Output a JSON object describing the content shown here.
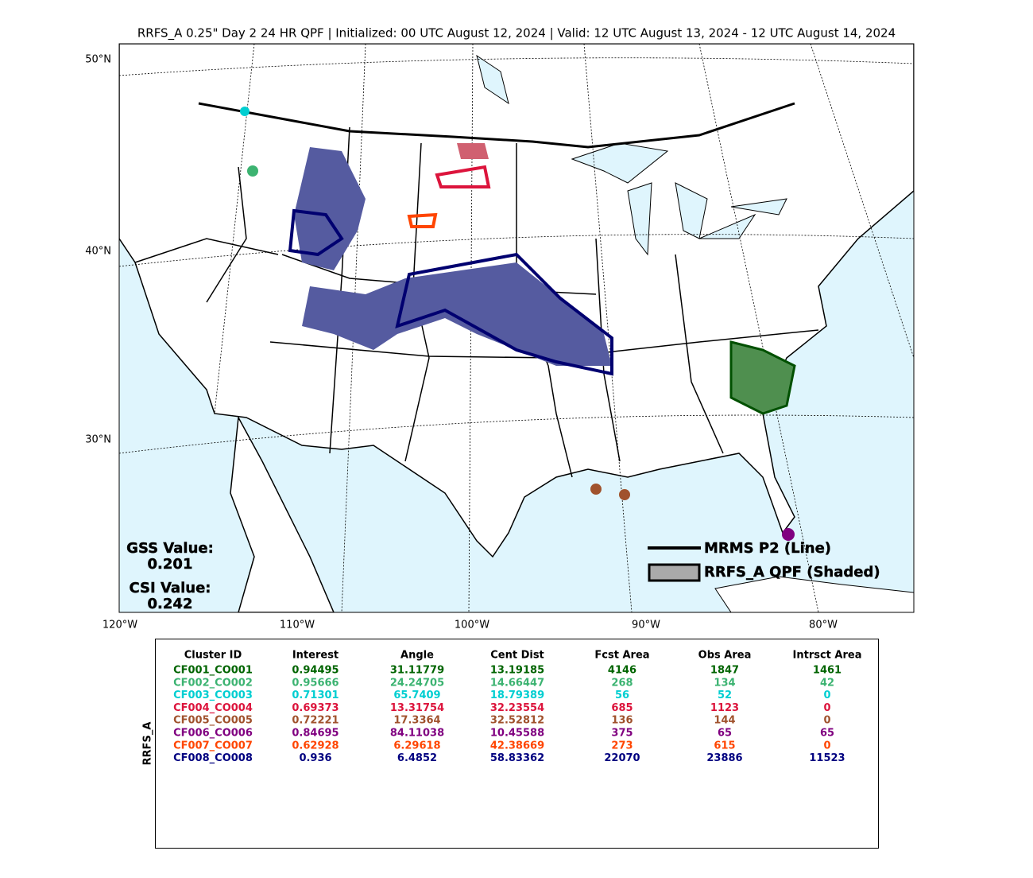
{
  "title": "RRFS_A 0.25\" Day 2 24 HR QPF | Initialized: 00 UTC August 12, 2024 | Valid: 12 UTC August 13, 2024 - 12 UTC August 14, 2024",
  "map": {
    "lat_labels": [
      "50°N",
      "40°N",
      "30°N"
    ],
    "lon_labels": [
      "120°W",
      "110°W",
      "100°W",
      "90°W",
      "80°W"
    ],
    "scores": [
      {
        "label": "GSS Value:",
        "value": 0.201
      },
      {
        "label": "CSI Value:",
        "value": 0.242
      }
    ],
    "legend": [
      "MRMS P2 (Line)",
      "RRFS_A QPF (Shaded)"
    ]
  },
  "table": {
    "side_label": "RRFS_A",
    "columns": [
      "Cluster ID",
      "Interest",
      "Angle",
      "Cent Dist",
      "Fcst Area",
      "Obs Area",
      "Intrsct Area"
    ],
    "row_colors": [
      "#006400",
      "#3cb371",
      "#00ced1",
      "#dc143c",
      "#a0522d",
      "#800080",
      "#ff4500",
      "#000080"
    ],
    "rows": [
      [
        "CF001_CO001",
        0.94495,
        31.11779,
        13.19185,
        4146,
        1847,
        1461
      ],
      [
        "CF002_CO002",
        0.95666,
        24.24705,
        14.66447,
        268,
        134,
        42
      ],
      [
        "CF003_CO003",
        0.71301,
        65.7409,
        18.79389,
        56,
        52,
        0
      ],
      [
        "CF004_CO004",
        0.69373,
        13.31754,
        32.23554,
        685,
        1123,
        0
      ],
      [
        "CF005_CO005",
        0.72221,
        17.3364,
        32.52812,
        136,
        144,
        0
      ],
      [
        "CF006_CO006",
        0.84695,
        84.11038,
        10.45588,
        375,
        65,
        65
      ],
      [
        "CF007_CO007",
        0.62928,
        6.29618,
        42.38669,
        273,
        615,
        0
      ],
      [
        "CF008_CO008",
        0.936,
        6.4852,
        58.83362,
        22070,
        23886,
        11523
      ]
    ]
  }
}
